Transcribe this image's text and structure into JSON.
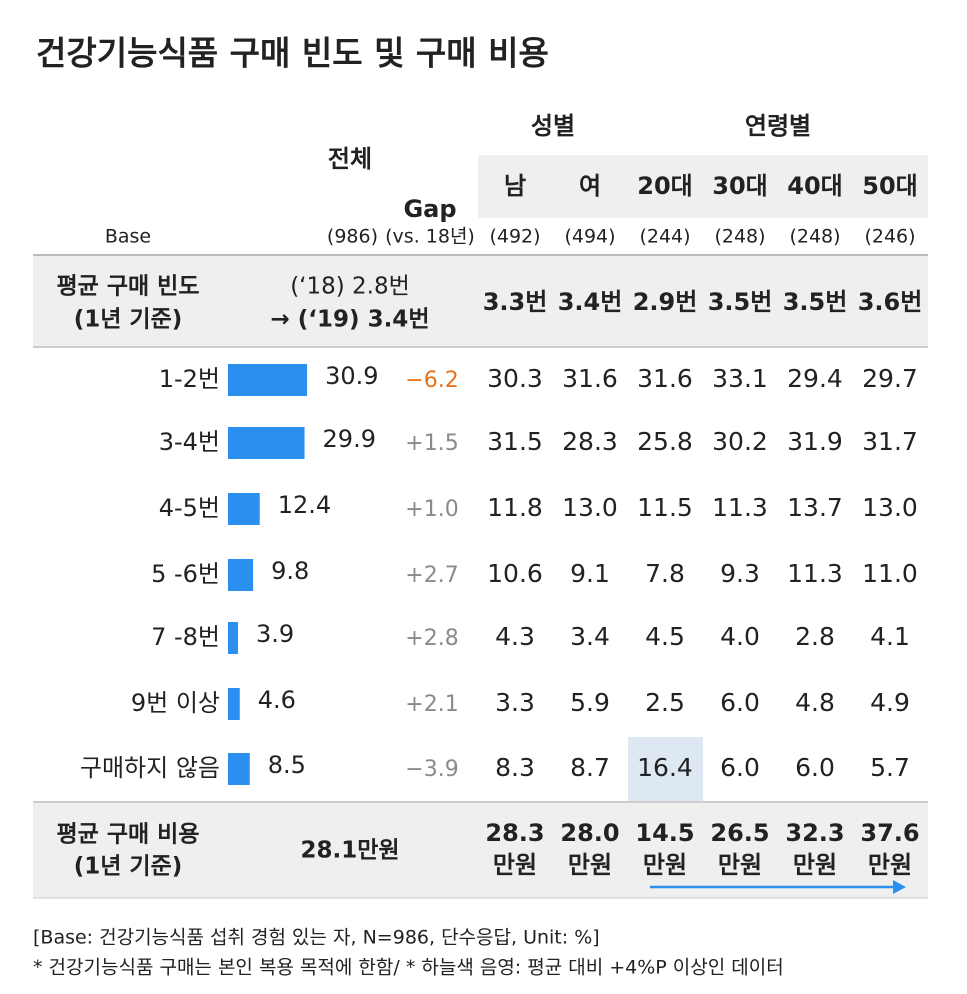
{
  "title": "건강기능식품 구매 빈도 및 구매 비용",
  "header": {
    "total": "전체",
    "gap": "Gap",
    "gender": "성별",
    "age": "연령별",
    "columns": [
      "남",
      "여",
      "20대",
      "30대",
      "40대",
      "50대"
    ],
    "base_label": "Base",
    "base_total": "(986)",
    "base_gap": "(vs. 18년)",
    "base_n": [
      "(492)",
      "(494)",
      "(244)",
      "(248)",
      "(248)",
      "(246)"
    ]
  },
  "avg_freq": {
    "label": [
      "평균 구매 빈도",
      "(1년 기준)"
    ],
    "total": [
      "(‘18) 2.8번",
      "→ (‘19) 3.4번"
    ],
    "values": [
      "3.3번",
      "3.4번",
      "2.9번",
      "3.5번",
      "3.5번",
      "3.6번"
    ]
  },
  "bar_color": "#2b8ff0",
  "rows": [
    {
      "label": "1-2번",
      "total": 30.9,
      "gap": "−6.2",
      "gap_color": "#e8731a",
      "values": [
        "30.3",
        "31.6",
        "31.6",
        "33.1",
        "29.4",
        "29.7"
      ]
    },
    {
      "label": "3-4번",
      "total": 29.9,
      "gap": "+1.5",
      "gap_color": "#8a8a8a",
      "values": [
        "31.5",
        "28.3",
        "25.8",
        "30.2",
        "31.9",
        "31.7"
      ]
    },
    {
      "label": "4-5번",
      "total": 12.4,
      "gap": "+1.0",
      "gap_color": "#8a8a8a",
      "values": [
        "11.8",
        "13.0",
        "11.5",
        "11.3",
        "13.7",
        "13.0"
      ]
    },
    {
      "label": "5 -6번",
      "total": 9.8,
      "gap": "+2.7",
      "gap_color": "#8a8a8a",
      "values": [
        "10.6",
        "9.1",
        "7.8",
        "9.3",
        "11.3",
        "11.0"
      ]
    },
    {
      "label": "7 -8번",
      "total": 3.9,
      "gap": "+2.8",
      "gap_color": "#8a8a8a",
      "values": [
        "4.3",
        "3.4",
        "4.5",
        "4.0",
        "2.8",
        "4.1"
      ]
    },
    {
      "label": "9번 이상",
      "total": 4.6,
      "gap": "+2.1",
      "gap_color": "#8a8a8a",
      "values": [
        "3.3",
        "5.9",
        "2.5",
        "6.0",
        "4.8",
        "4.9"
      ]
    },
    {
      "label": "구매하지 않음",
      "total": 8.5,
      "gap": "−3.9",
      "gap_color": "#8a8a8a",
      "values": [
        "8.3",
        "8.7",
        "16.4",
        "6.0",
        "6.0",
        "5.7"
      ],
      "highlight": [
        2
      ]
    }
  ],
  "avg_cost": {
    "label": [
      "평균 구매 비용",
      "(1년 기준)"
    ],
    "total": "28.1만원",
    "values": [
      [
        "28.3",
        "만원"
      ],
      [
        "28.0",
        "만원"
      ],
      [
        "14.5",
        "만원"
      ],
      [
        "26.5",
        "만원"
      ],
      [
        "32.3",
        "만원"
      ],
      [
        "37.6",
        "만원"
      ]
    ]
  },
  "footnotes": [
    "[Base: 건강기능식품 섭취 경험 있는 자, N=986, 단수응답, Unit: %]",
    "* 건강기능식품 구매는 본인 복용 목적에 한함/ * 하늘색 음영: 평균 대비 +4%P 이상인 데이터"
  ]
}
